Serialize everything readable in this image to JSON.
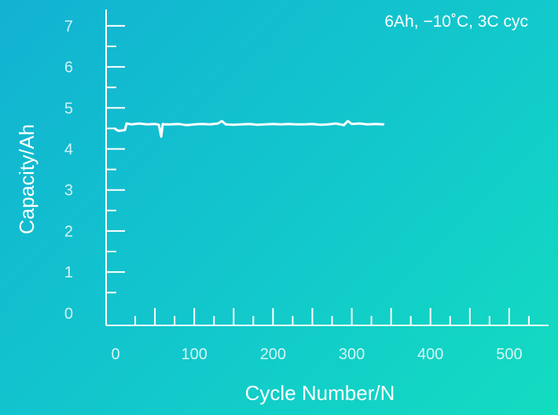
{
  "chart_data": {
    "type": "line",
    "title": "",
    "annotation": "6Ah,  −10˚C,  3C cyc",
    "xlabel": "Cycle Number/N",
    "ylabel": "Capacity/Ah",
    "xlim": [
      -12,
      550
    ],
    "ylim": [
      -0.3,
      7.4
    ],
    "x_tick_labels": [
      0,
      100,
      200,
      300,
      400,
      500
    ],
    "y_tick_labels": [
      0,
      1,
      2,
      3,
      4,
      5,
      6,
      7
    ],
    "grid": false,
    "legend": "none",
    "colors": {
      "line": "#ffffff",
      "axis": "#ffffff"
    },
    "series": [
      {
        "x": [
          0,
          4,
          8,
          12,
          14,
          20,
          30,
          40,
          50,
          55,
          58,
          60,
          62,
          70,
          80,
          90,
          100,
          110,
          120,
          130,
          135,
          140,
          150,
          160,
          170,
          180,
          190,
          200,
          210,
          220,
          230,
          240,
          250,
          260,
          270,
          280,
          290,
          295,
          300,
          310,
          320,
          330,
          340
        ],
        "values": [
          4.48,
          4.44,
          4.45,
          4.46,
          4.62,
          4.6,
          4.62,
          4.6,
          4.61,
          4.59,
          4.3,
          4.61,
          4.6,
          4.6,
          4.61,
          4.58,
          4.6,
          4.61,
          4.6,
          4.62,
          4.68,
          4.6,
          4.59,
          4.6,
          4.61,
          4.59,
          4.6,
          4.61,
          4.6,
          4.61,
          4.6,
          4.6,
          4.61,
          4.59,
          4.6,
          4.62,
          4.58,
          4.68,
          4.61,
          4.62,
          4.6,
          4.61,
          4.6
        ]
      }
    ]
  }
}
